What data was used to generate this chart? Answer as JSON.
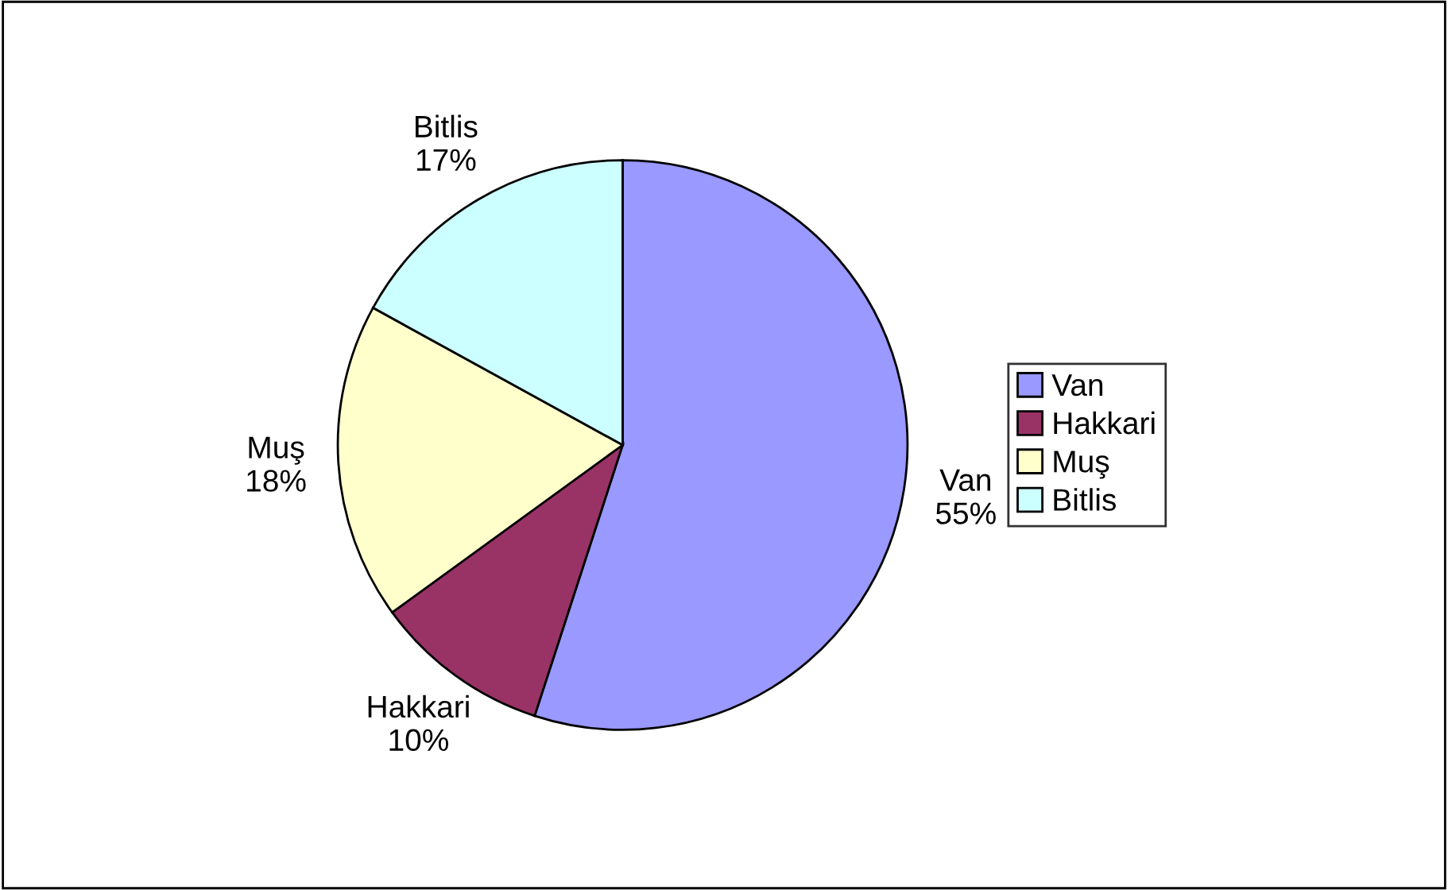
{
  "chart_data": {
    "type": "pie",
    "categories": [
      "Van",
      "Hakkari",
      "Muş",
      "Bitlis"
    ],
    "values": [
      55,
      10,
      18,
      17
    ],
    "colors": [
      "#9999ff",
      "#993366",
      "#ffffcc",
      "#ccffff"
    ],
    "value_labels": [
      "55%",
      "10%",
      "18%",
      "17%"
    ],
    "legend": "right"
  }
}
